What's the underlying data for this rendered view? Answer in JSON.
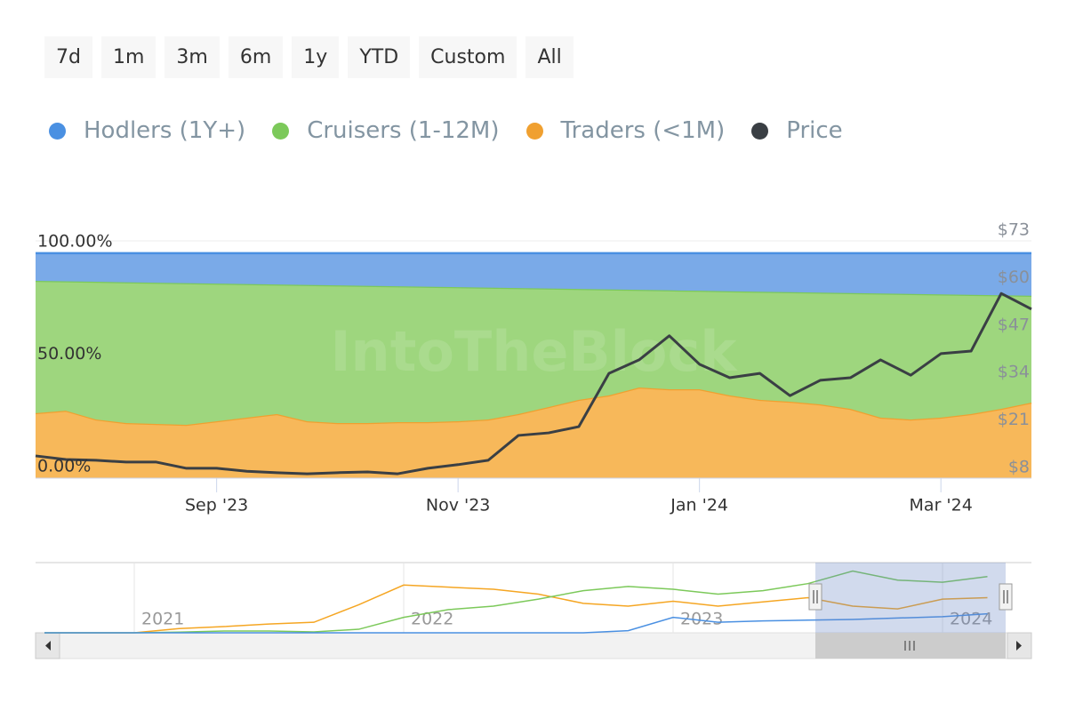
{
  "range_selector": {
    "buttons": [
      "7d",
      "1m",
      "3m",
      "6m",
      "1y",
      "YTD",
      "Custom",
      "All"
    ]
  },
  "chart_data": [
    {
      "type": "area",
      "stacked": true,
      "watermark": "IntoTheBlock",
      "x": [
        null,
        null,
        null,
        null,
        null,
        null,
        "Sep '23",
        null,
        null,
        null,
        null,
        null,
        null,
        null,
        "Nov '23",
        null,
        null,
        null,
        null,
        null,
        null,
        null,
        "Jan '24",
        null,
        null,
        null,
        null,
        null,
        null,
        null,
        "Mar '24",
        null,
        null,
        null
      ],
      "ylim": [
        0,
        105.5
      ],
      "yticks": [
        {
          "value": 0,
          "label": "0.00%"
        },
        {
          "value": 50,
          "label": "50.00%"
        },
        {
          "value": 100,
          "label": "100.00%"
        }
      ],
      "y2lim": [
        8,
        73
      ],
      "y2ticks": [
        {
          "value": 8,
          "label": "$8"
        },
        {
          "value": 21,
          "label": "$21"
        },
        {
          "value": 34,
          "label": "$34"
        },
        {
          "value": 47,
          "label": "$47"
        },
        {
          "value": 60,
          "label": "$60"
        },
        {
          "value": 73,
          "label": "$73"
        }
      ],
      "grid": true,
      "series": [
        {
          "name": "Hodlers (1Y+)",
          "color": "#4a90e2",
          "fill": "#7aaae8",
          "values": [
            12.3,
            12.5,
            12.7,
            12.9,
            13.1,
            13.3,
            13.5,
            13.7,
            13.9,
            14.1,
            14.3,
            14.5,
            14.7,
            14.9,
            15.1,
            15.3,
            15.5,
            15.7,
            15.9,
            16.1,
            16.3,
            16.5,
            16.7,
            16.9,
            17.1,
            17.3,
            17.5,
            17.7,
            17.9,
            18.1,
            18.3,
            18.5,
            18.7,
            18.9
          ]
        },
        {
          "name": "Cruisers (1-12M)",
          "color": "#7cc95a",
          "fill": "#9ed67e",
          "values": [
            58.8,
            57.5,
            61.2,
            62.6,
            62.8,
            63.0,
            61.2,
            59.4,
            57.6,
            60.6,
            61.2,
            61.0,
            60.4,
            60.2,
            59.6,
            58.6,
            56.0,
            52.7,
            49.3,
            47.1,
            43.4,
            44.0,
            43.8,
            46.3,
            48.1,
            48.7,
            49.7,
            51.5,
            55.2,
            55.8,
            54.8,
            53.0,
            50.5,
            47.5
          ]
        },
        {
          "name": "Traders (<1M)",
          "color": "#f0a030",
          "fill": "#f7b85a",
          "values": [
            28.9,
            30.0,
            26.1,
            24.5,
            24.1,
            23.7,
            25.3,
            26.9,
            28.5,
            25.3,
            24.5,
            24.5,
            24.9,
            24.9,
            25.3,
            26.1,
            28.5,
            31.6,
            34.8,
            36.8,
            40.3,
            39.5,
            39.5,
            36.8,
            34.8,
            34.0,
            32.8,
            30.8,
            26.9,
            26.1,
            26.9,
            28.5,
            30.8,
            33.6
          ]
        },
        {
          "name": "Price",
          "color": "#3a3f44",
          "type": "line",
          "axis": "y2",
          "values": [
            14.1,
            13.1,
            12.9,
            12.4,
            12.4,
            10.7,
            10.7,
            9.9,
            9.5,
            9.2,
            9.5,
            9.7,
            9.2,
            10.7,
            11.7,
            12.9,
            19.7,
            20.4,
            22.1,
            36.7,
            40.4,
            47.0,
            39.2,
            35.5,
            36.7,
            30.6,
            34.8,
            35.5,
            40.4,
            36.2,
            42.1,
            42.8,
            58.6,
            54.3
          ]
        }
      ]
    },
    {
      "type": "line",
      "x": [
        null,
        null,
        "2021",
        null,
        null,
        null,
        null,
        null,
        "2022",
        null,
        null,
        null,
        null,
        null,
        "2023",
        null,
        null,
        null,
        null,
        null,
        "2024",
        null
      ],
      "ylim": [
        0,
        100
      ],
      "series": [
        {
          "color": "#f5a623",
          "values": [
            0,
            0,
            0,
            6,
            8.8,
            12.5,
            15,
            40,
            68,
            65,
            62,
            55,
            42,
            38,
            45,
            38,
            44,
            50,
            38,
            34,
            48,
            50
          ]
        },
        {
          "color": "#7cc95a",
          "values": [
            0,
            0,
            0,
            1,
            2.5,
            2.5,
            1.3,
            5,
            22,
            33,
            38,
            48,
            60,
            66,
            62,
            55,
            60,
            70,
            88,
            75,
            72,
            80
          ]
        },
        {
          "color": "#4a90e2",
          "values": [
            0,
            0,
            0,
            0,
            0,
            0,
            0,
            0,
            0,
            0,
            0,
            0,
            0,
            3,
            22,
            15,
            17,
            18,
            19,
            21,
            23,
            27
          ]
        }
      ]
    }
  ]
}
